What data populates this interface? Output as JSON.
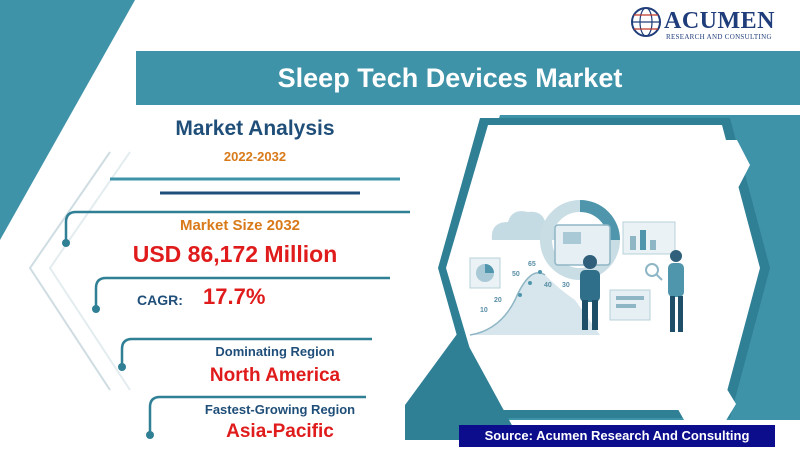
{
  "logo": {
    "word": "ACUMEN",
    "subtitle": "RESEARCH AND CONSULTING"
  },
  "banner": {
    "title": "Sleep Tech Devices Market"
  },
  "analysis": {
    "title": "Market Analysis",
    "years": "2022-2032"
  },
  "market_size": {
    "label": "Market Size 2032",
    "value": "USD 86,172 Million"
  },
  "cagr": {
    "label": "CAGR:",
    "value": "17.7%"
  },
  "dominating_region": {
    "label": "Dominating Region",
    "value": "North America"
  },
  "fastest_growing": {
    "label": "Fastest-Growing Region",
    "value": "Asia-Pacific"
  },
  "source": {
    "text": "Source: Acumen Research And Consulting"
  },
  "illustration": {
    "numbers": [
      "65",
      "50",
      "40",
      "30",
      "20",
      "10"
    ]
  },
  "colors": {
    "teal": "#3f93a8",
    "teal_dark": "#2f7f95",
    "navy_text": "#1f4e79",
    "orange": "#d97a1a",
    "red": "#e01b1b",
    "source_bg": "#0b0d8c"
  }
}
